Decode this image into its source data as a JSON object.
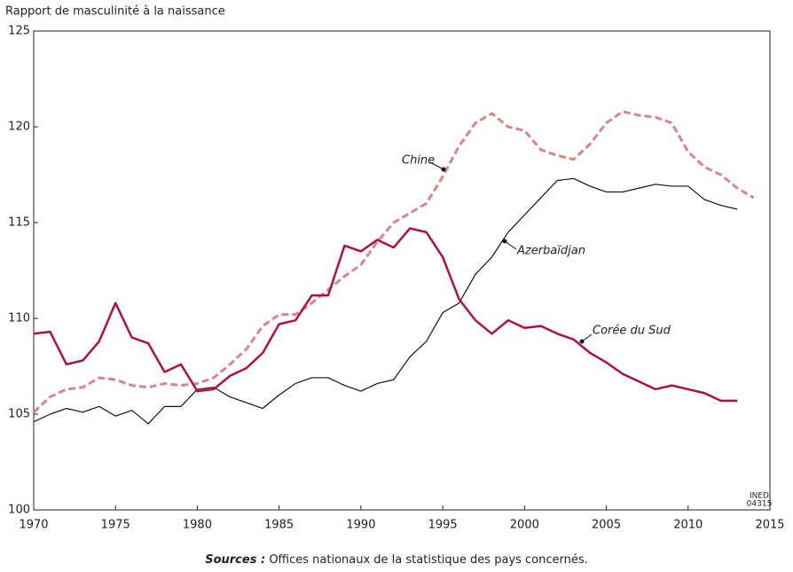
{
  "chart_data": {
    "type": "line",
    "y_label": "Rapport de masculinité à la naissance",
    "source_label": "Sources :",
    "source": "Offices nationaux de la statistique des pays concernés.",
    "annotations": [
      "INED",
      "04315"
    ],
    "xlim": [
      1970,
      2015
    ],
    "xticks": [
      1970,
      1975,
      1980,
      1985,
      1990,
      1995,
      2000,
      2005,
      2010,
      2015
    ],
    "ylim": [
      100,
      125
    ],
    "yticks": [
      100,
      105,
      110,
      115,
      120,
      125
    ],
    "series": [
      {
        "name": "Chine",
        "color": "#d98585",
        "dashed": true,
        "x": [
          1970,
          1971,
          1972,
          1973,
          1974,
          1975,
          1976,
          1977,
          1978,
          1979,
          1980,
          1981,
          1982,
          1983,
          1984,
          1985,
          1986,
          1987,
          1988,
          1989,
          1990,
          1991,
          1992,
          1993,
          1994,
          1995,
          1996,
          1997,
          1998,
          1999,
          2000,
          2001,
          2002,
          2003,
          2004,
          2005,
          2006,
          2007,
          2008,
          2009,
          2010,
          2011,
          2012,
          2013,
          2014
        ],
        "values": [
          105.1,
          105.9,
          106.3,
          106.4,
          106.9,
          106.8,
          106.5,
          106.4,
          106.6,
          106.5,
          106.6,
          106.9,
          107.6,
          108.4,
          109.6,
          110.2,
          110.2,
          110.8,
          111.5,
          112.2,
          112.8,
          114.0,
          115.0,
          115.5,
          116.0,
          117.4,
          119.0,
          120.2,
          120.7,
          120.0,
          119.8,
          118.8,
          118.5,
          118.3,
          119.1,
          120.2,
          120.8,
          120.6,
          120.5,
          120.2,
          118.7,
          117.9,
          117.5,
          116.8,
          116.3
        ]
      },
      {
        "name": "Azerbaïdjan",
        "color": "#111111",
        "dashed": false,
        "x": [
          1970,
          1971,
          1972,
          1973,
          1974,
          1975,
          1976,
          1977,
          1978,
          1979,
          1980,
          1981,
          1982,
          1983,
          1984,
          1985,
          1986,
          1987,
          1988,
          1989,
          1990,
          1991,
          1992,
          1993,
          1994,
          1995,
          1996,
          1997,
          1998,
          1999,
          2000,
          2001,
          2002,
          2003,
          2004,
          2005,
          2006,
          2007,
          2008,
          2009,
          2010,
          2011,
          2012,
          2013
        ],
        "values": [
          104.6,
          105.0,
          105.3,
          105.1,
          105.4,
          104.9,
          105.2,
          104.5,
          105.4,
          105.4,
          106.3,
          106.4,
          105.9,
          105.6,
          105.3,
          106.0,
          106.6,
          106.9,
          106.9,
          106.5,
          106.2,
          106.6,
          106.8,
          108.0,
          108.8,
          110.3,
          110.8,
          112.3,
          113.2,
          114.5,
          115.4,
          116.3,
          117.2,
          117.3,
          116.9,
          116.6,
          116.6,
          116.8,
          117.0,
          116.9,
          116.9,
          116.2,
          115.9,
          115.7
        ]
      },
      {
        "name": "Corée du Sud",
        "color": "#b0103f",
        "dashed": false,
        "x": [
          1970,
          1971,
          1972,
          1973,
          1974,
          1975,
          1976,
          1977,
          1978,
          1979,
          1980,
          1981,
          1982,
          1983,
          1984,
          1985,
          1986,
          1987,
          1988,
          1989,
          1990,
          1991,
          1992,
          1993,
          1994,
          1995,
          1996,
          1997,
          1998,
          1999,
          2000,
          2001,
          2002,
          2003,
          2004,
          2005,
          2006,
          2007,
          2008,
          2009,
          2010,
          2011,
          2012,
          2013
        ],
        "values": [
          109.2,
          109.3,
          107.6,
          107.8,
          108.8,
          110.8,
          109.0,
          108.7,
          107.2,
          107.6,
          106.2,
          106.3,
          107.0,
          107.4,
          108.2,
          109.7,
          109.9,
          111.2,
          111.2,
          113.8,
          113.5,
          114.1,
          113.7,
          114.7,
          114.5,
          113.2,
          111.0,
          109.9,
          109.2,
          109.9,
          109.5,
          109.6,
          109.2,
          108.9,
          108.2,
          107.7,
          107.1,
          106.7,
          106.3,
          106.5,
          106.3,
          106.1,
          105.7,
          105.7
        ]
      }
    ]
  }
}
